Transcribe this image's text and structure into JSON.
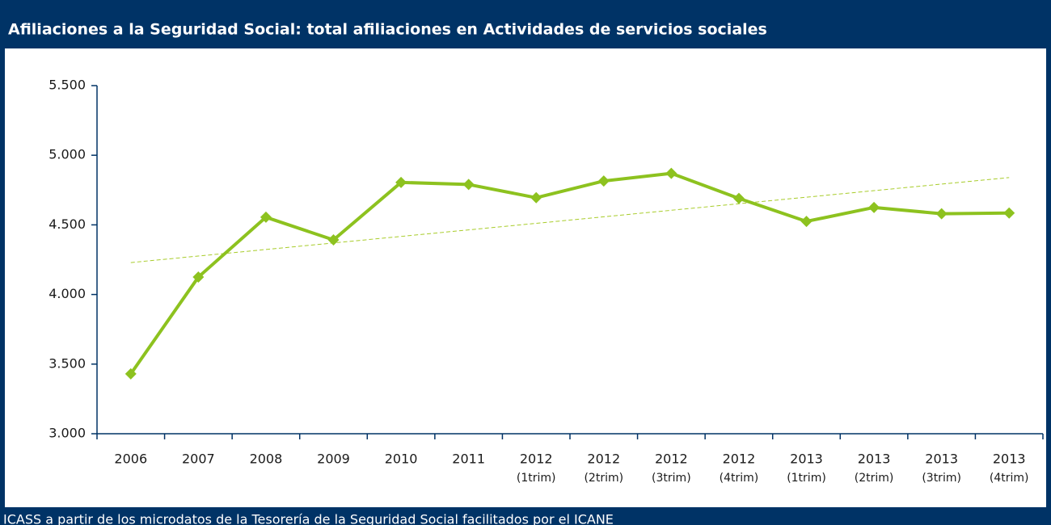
{
  "chart_data": {
    "type": "line",
    "title": "Afiliaciones a la Seguridad Social: total afiliaciones en Actividades de servicios sociales",
    "source": "ICASS a partir de los microdatos de la Tesorería de la Seguridad Social facilitados por el ICANE",
    "categories": [
      [
        "2006"
      ],
      [
        "2007"
      ],
      [
        "2008"
      ],
      [
        "2009"
      ],
      [
        "2010"
      ],
      [
        "2011"
      ],
      [
        "2012",
        "(1trim)"
      ],
      [
        "2012",
        "(2trim)"
      ],
      [
        "2012",
        "(3trim)"
      ],
      [
        "2012",
        "(4trim)"
      ],
      [
        "2013",
        "(1trim)"
      ],
      [
        "2013",
        "(2trim)"
      ],
      [
        "2013",
        "(3trim)"
      ],
      [
        "2013",
        "(4trim)"
      ]
    ],
    "series": [
      {
        "color": "#8dc21f",
        "values": [
          3430,
          4125,
          4555,
          4392,
          4805,
          4790,
          4695,
          4815,
          4870,
          4690,
          4525,
          4625,
          4580,
          4585
        ]
      }
    ],
    "trendline": "linear",
    "trend_color": "#a8cc2a",
    "ylim": [
      3000,
      5500
    ],
    "yticks": [
      {
        "value": 3000,
        "label": "3.000"
      },
      {
        "value": 3500,
        "label": "3.500"
      },
      {
        "value": 4000,
        "label": "4.000"
      },
      {
        "value": 4500,
        "label": "4.500"
      },
      {
        "value": 5000,
        "label": "5.000"
      },
      {
        "value": 5500,
        "label": "5.500"
      }
    ],
    "frame_color": "#003366"
  }
}
